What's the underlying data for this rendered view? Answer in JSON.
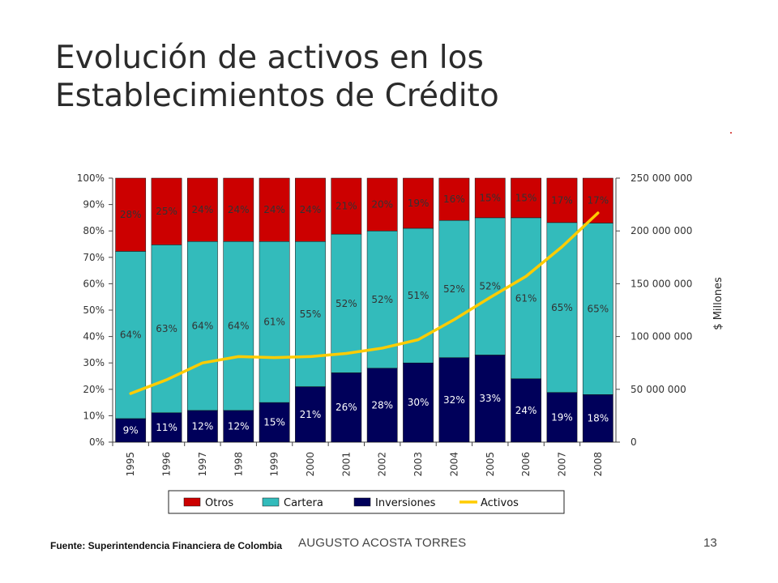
{
  "slide": {
    "title_line1": "Evolución de activos en los",
    "title_line2": "Establecimientos de Crédito",
    "source": "Fuente: Superintendencia Financiera de Colombia",
    "author": "AUGUSTO ACOSTA TORRES",
    "page_number": "13"
  },
  "chart_data": {
    "type": "bar",
    "stacked": true,
    "categories": [
      "1995",
      "1996",
      "1997",
      "1998",
      "1999",
      "2000",
      "2001",
      "2002",
      "2003",
      "2004",
      "2005",
      "2006",
      "2007",
      "2008"
    ],
    "series": [
      {
        "name": "Inversiones",
        "color": "#00005a",
        "values": [
          9,
          11,
          12,
          12,
          15,
          21,
          26,
          28,
          30,
          32,
          33,
          24,
          19,
          18
        ],
        "labels": [
          "9%",
          "11%",
          "12%",
          "12%",
          "15%",
          "21%",
          "26%",
          "28%",
          "30%",
          "32%",
          "33%",
          "24%",
          "19%",
          "18%"
        ]
      },
      {
        "name": "Cartera",
        "color": "#33bbbb",
        "values": [
          64,
          63,
          64,
          64,
          61,
          55,
          52,
          52,
          51,
          52,
          52,
          61,
          65,
          65
        ],
        "labels": [
          "64%",
          "63%",
          "64%",
          "64%",
          "61%",
          "55%",
          "52%",
          "52%",
          "51%",
          "52%",
          "52%",
          "61%",
          "65%",
          "65%"
        ]
      },
      {
        "name": "Otros",
        "color": "#cc0000",
        "values": [
          28,
          25,
          24,
          24,
          24,
          24,
          21,
          20,
          19,
          16,
          15,
          15,
          17,
          17
        ],
        "labels": [
          "28%",
          "25%",
          "24%",
          "24%",
          "24%",
          "24%",
          "21%",
          "20%",
          "19%",
          "16%",
          "15%",
          "15%",
          "17%",
          "17%"
        ]
      }
    ],
    "line_series": {
      "name": "Activos",
      "color": "#ffcc00",
      "axis": "right",
      "values": [
        46000000,
        59000000,
        75000000,
        81000000,
        80000000,
        81000000,
        84000000,
        89000000,
        97000000,
        116000000,
        137000000,
        157000000,
        185000000,
        217000000
      ]
    },
    "y_left": {
      "ticks": [
        "0%",
        "10%",
        "20%",
        "30%",
        "40%",
        "50%",
        "60%",
        "70%",
        "80%",
        "90%",
        "100%"
      ],
      "range": [
        0,
        100
      ]
    },
    "y_right": {
      "ticks": [
        "0",
        "50 000 000",
        "100 000 000",
        "150 000 000",
        "200 000 000",
        "250 000 000"
      ],
      "range": [
        0,
        250000000
      ],
      "label": "$ Millones"
    },
    "legend": {
      "placement": "bottom",
      "entries": [
        "Otros",
        "Cartera",
        "Inversiones",
        "Activos"
      ]
    }
  }
}
